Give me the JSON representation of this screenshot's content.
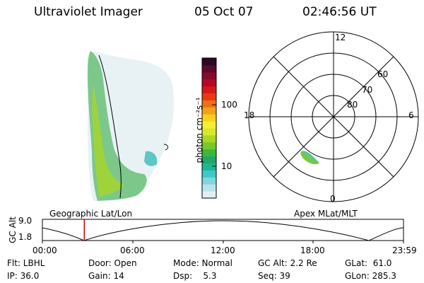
{
  "header": {
    "instrument": "Ultraviolet Imager",
    "date": "05 Oct 07",
    "time": "02:46:56 UT"
  },
  "colorbar": {
    "label": "photon cm⁻²s⁻¹",
    "ticks": [
      "100",
      "10"
    ],
    "colors": [
      "#dff0f4",
      "#b9e3ea",
      "#7fd6e0",
      "#3fc8c8",
      "#19b896",
      "#1fa86a",
      "#3cb838",
      "#74c82a",
      "#a8d822",
      "#d8e828",
      "#f4f030",
      "#f8d020",
      "#f4a018",
      "#ee7010",
      "#e83a10",
      "#d81818",
      "#b40828",
      "#880a2a",
      "#5a0a2a",
      "#2a0a24"
    ]
  },
  "polar": {
    "labels": {
      "top": "12",
      "bottom": "0",
      "left": "18",
      "right": "6"
    },
    "rings": [
      "60",
      "70",
      "80"
    ]
  },
  "timeline": {
    "left_label": "Geographic Lat/Lon",
    "right_label": "Apex MLat/MLT",
    "axis_label": "GC Alt",
    "y_ticks": [
      "9.0",
      "1.8"
    ],
    "x_ticks": [
      "00:00",
      "06:00",
      "12:00",
      "18:00",
      "23:59"
    ],
    "current_time_fraction": 0.116
  },
  "info": {
    "flt": "Flt: LBHL",
    "ip": "IP: 36.0",
    "door": "Door: Open",
    "gain": "Gain: 14",
    "mode": "Mode: Normal",
    "dsp": "Dsp:    5.3",
    "gc_alt": "GC Alt: 2.2 Re",
    "seq": "Seq: 39",
    "glat": "GLat:  61.0",
    "glon": "GLon: 285.3"
  }
}
